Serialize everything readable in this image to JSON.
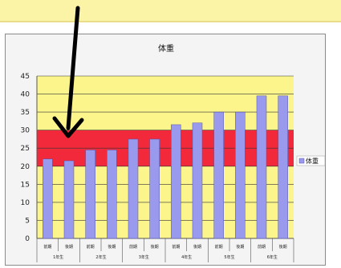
{
  "chart_data": {
    "type": "bar",
    "title": "体重",
    "xlabel": "",
    "ylabel": "",
    "ylim": [
      0,
      45
    ],
    "yticks": [
      0,
      5,
      10,
      15,
      20,
      25,
      30,
      35,
      40,
      45
    ],
    "grid": true,
    "legend_position": "right",
    "categories": [
      "前期",
      "後期",
      "前期",
      "後期",
      "前期",
      "後期",
      "前期",
      "後期",
      "前期",
      "後期",
      "前期",
      "後期"
    ],
    "groups": [
      "1年生",
      "2年生",
      "3年生",
      "4年生",
      "5年生",
      "6年生"
    ],
    "series": [
      {
        "name": "体重",
        "values": [
          22,
          21.5,
          24.5,
          24.5,
          27.5,
          27.5,
          31.5,
          32,
          35,
          35,
          39.5,
          39.5
        ]
      }
    ],
    "bands": [
      {
        "from": 0,
        "to": 20,
        "color": "#fbf58c"
      },
      {
        "from": 20,
        "to": 30,
        "color": "#f2293a"
      },
      {
        "from": 30,
        "to": 45,
        "color": "#fbf58c"
      }
    ],
    "bar_color": "#9999ee",
    "annotation": {
      "type": "arrow",
      "color": "#000000"
    }
  },
  "colors": {
    "top_band": "#fbf3a6",
    "frame_bg": "#f4f4f4",
    "axis": "#555555"
  }
}
